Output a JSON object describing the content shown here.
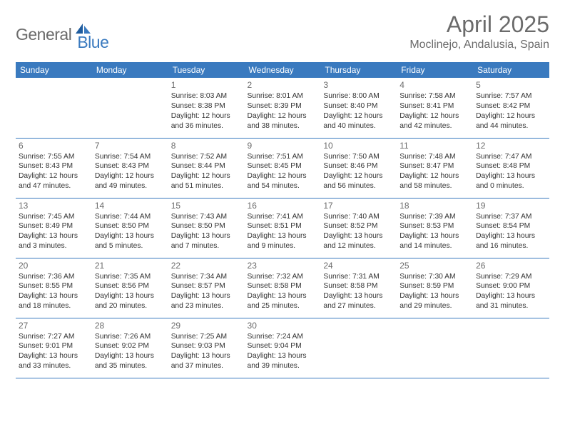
{
  "logo": {
    "general": "General",
    "blue": "Blue"
  },
  "title": "April 2025",
  "location": "Moclinejo, Andalusia, Spain",
  "colors": {
    "header_bg": "#3a7abf",
    "header_text": "#ffffff",
    "text_gray": "#6b6b6b",
    "body_text": "#333333",
    "border": "#3a7abf",
    "page_bg": "#ffffff"
  },
  "fonts": {
    "body_size": 10.3,
    "daynum_size": 12,
    "dayhead_size": 12,
    "title_size": 32,
    "location_size": 16
  },
  "day_headers": [
    "Sunday",
    "Monday",
    "Tuesday",
    "Wednesday",
    "Thursday",
    "Friday",
    "Saturday"
  ],
  "weeks": [
    [
      null,
      null,
      {
        "n": "1",
        "sr": "8:03 AM",
        "ss": "8:38 PM",
        "d1": "12 hours",
        "d2": "and 36 minutes."
      },
      {
        "n": "2",
        "sr": "8:01 AM",
        "ss": "8:39 PM",
        "d1": "12 hours",
        "d2": "and 38 minutes."
      },
      {
        "n": "3",
        "sr": "8:00 AM",
        "ss": "8:40 PM",
        "d1": "12 hours",
        "d2": "and 40 minutes."
      },
      {
        "n": "4",
        "sr": "7:58 AM",
        "ss": "8:41 PM",
        "d1": "12 hours",
        "d2": "and 42 minutes."
      },
      {
        "n": "5",
        "sr": "7:57 AM",
        "ss": "8:42 PM",
        "d1": "12 hours",
        "d2": "and 44 minutes."
      }
    ],
    [
      {
        "n": "6",
        "sr": "7:55 AM",
        "ss": "8:43 PM",
        "d1": "12 hours",
        "d2": "and 47 minutes."
      },
      {
        "n": "7",
        "sr": "7:54 AM",
        "ss": "8:43 PM",
        "d1": "12 hours",
        "d2": "and 49 minutes."
      },
      {
        "n": "8",
        "sr": "7:52 AM",
        "ss": "8:44 PM",
        "d1": "12 hours",
        "d2": "and 51 minutes."
      },
      {
        "n": "9",
        "sr": "7:51 AM",
        "ss": "8:45 PM",
        "d1": "12 hours",
        "d2": "and 54 minutes."
      },
      {
        "n": "10",
        "sr": "7:50 AM",
        "ss": "8:46 PM",
        "d1": "12 hours",
        "d2": "and 56 minutes."
      },
      {
        "n": "11",
        "sr": "7:48 AM",
        "ss": "8:47 PM",
        "d1": "12 hours",
        "d2": "and 58 minutes."
      },
      {
        "n": "12",
        "sr": "7:47 AM",
        "ss": "8:48 PM",
        "d1": "13 hours",
        "d2": "and 0 minutes."
      }
    ],
    [
      {
        "n": "13",
        "sr": "7:45 AM",
        "ss": "8:49 PM",
        "d1": "13 hours",
        "d2": "and 3 minutes."
      },
      {
        "n": "14",
        "sr": "7:44 AM",
        "ss": "8:50 PM",
        "d1": "13 hours",
        "d2": "and 5 minutes."
      },
      {
        "n": "15",
        "sr": "7:43 AM",
        "ss": "8:50 PM",
        "d1": "13 hours",
        "d2": "and 7 minutes."
      },
      {
        "n": "16",
        "sr": "7:41 AM",
        "ss": "8:51 PM",
        "d1": "13 hours",
        "d2": "and 9 minutes."
      },
      {
        "n": "17",
        "sr": "7:40 AM",
        "ss": "8:52 PM",
        "d1": "13 hours",
        "d2": "and 12 minutes."
      },
      {
        "n": "18",
        "sr": "7:39 AM",
        "ss": "8:53 PM",
        "d1": "13 hours",
        "d2": "and 14 minutes."
      },
      {
        "n": "19",
        "sr": "7:37 AM",
        "ss": "8:54 PM",
        "d1": "13 hours",
        "d2": "and 16 minutes."
      }
    ],
    [
      {
        "n": "20",
        "sr": "7:36 AM",
        "ss": "8:55 PM",
        "d1": "13 hours",
        "d2": "and 18 minutes."
      },
      {
        "n": "21",
        "sr": "7:35 AM",
        "ss": "8:56 PM",
        "d1": "13 hours",
        "d2": "and 20 minutes."
      },
      {
        "n": "22",
        "sr": "7:34 AM",
        "ss": "8:57 PM",
        "d1": "13 hours",
        "d2": "and 23 minutes."
      },
      {
        "n": "23",
        "sr": "7:32 AM",
        "ss": "8:58 PM",
        "d1": "13 hours",
        "d2": "and 25 minutes."
      },
      {
        "n": "24",
        "sr": "7:31 AM",
        "ss": "8:58 PM",
        "d1": "13 hours",
        "d2": "and 27 minutes."
      },
      {
        "n": "25",
        "sr": "7:30 AM",
        "ss": "8:59 PM",
        "d1": "13 hours",
        "d2": "and 29 minutes."
      },
      {
        "n": "26",
        "sr": "7:29 AM",
        "ss": "9:00 PM",
        "d1": "13 hours",
        "d2": "and 31 minutes."
      }
    ],
    [
      {
        "n": "27",
        "sr": "7:27 AM",
        "ss": "9:01 PM",
        "d1": "13 hours",
        "d2": "and 33 minutes."
      },
      {
        "n": "28",
        "sr": "7:26 AM",
        "ss": "9:02 PM",
        "d1": "13 hours",
        "d2": "and 35 minutes."
      },
      {
        "n": "29",
        "sr": "7:25 AM",
        "ss": "9:03 PM",
        "d1": "13 hours",
        "d2": "and 37 minutes."
      },
      {
        "n": "30",
        "sr": "7:24 AM",
        "ss": "9:04 PM",
        "d1": "13 hours",
        "d2": "and 39 minutes."
      },
      null,
      null,
      null
    ]
  ],
  "labels": {
    "sunrise": "Sunrise:",
    "sunset": "Sunset:",
    "daylight": "Daylight:"
  }
}
